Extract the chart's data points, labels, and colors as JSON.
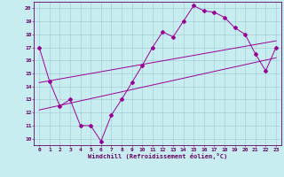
{
  "xlabel": "Windchill (Refroidissement éolien,°C)",
  "background_color": "#c8edf0",
  "grid_color": "#a0c8d0",
  "line_color": "#990099",
  "spine_color": "#660066",
  "tick_color": "#660066",
  "xlim": [
    -0.5,
    23.5
  ],
  "ylim": [
    9.5,
    20.5
  ],
  "yticks": [
    10,
    11,
    12,
    13,
    14,
    15,
    16,
    17,
    18,
    19,
    20
  ],
  "xticks": [
    0,
    1,
    2,
    3,
    4,
    5,
    6,
    7,
    8,
    9,
    10,
    11,
    12,
    13,
    14,
    15,
    16,
    17,
    18,
    19,
    20,
    21,
    22,
    23
  ],
  "series1_x": [
    0,
    1,
    2,
    3,
    4,
    5,
    6,
    7,
    8,
    9,
    10,
    11,
    12,
    13,
    14,
    15,
    16,
    17,
    18,
    19,
    20,
    21,
    22,
    23
  ],
  "series1_y": [
    17.0,
    14.4,
    12.5,
    13.0,
    11.0,
    11.0,
    9.8,
    11.8,
    13.0,
    14.3,
    15.6,
    17.0,
    18.2,
    17.8,
    19.0,
    20.2,
    19.8,
    19.7,
    19.3,
    18.5,
    18.0,
    16.5,
    15.2,
    17.0
  ],
  "regline1_x": [
    0,
    23
  ],
  "regline1_y": [
    14.3,
    17.5
  ],
  "regline2_x": [
    0,
    23
  ],
  "regline2_y": [
    12.2,
    16.2
  ],
  "xlabel_fontsize": 5.0,
  "tick_fontsize": 4.5,
  "marker_size": 2.0,
  "linewidth": 0.7
}
